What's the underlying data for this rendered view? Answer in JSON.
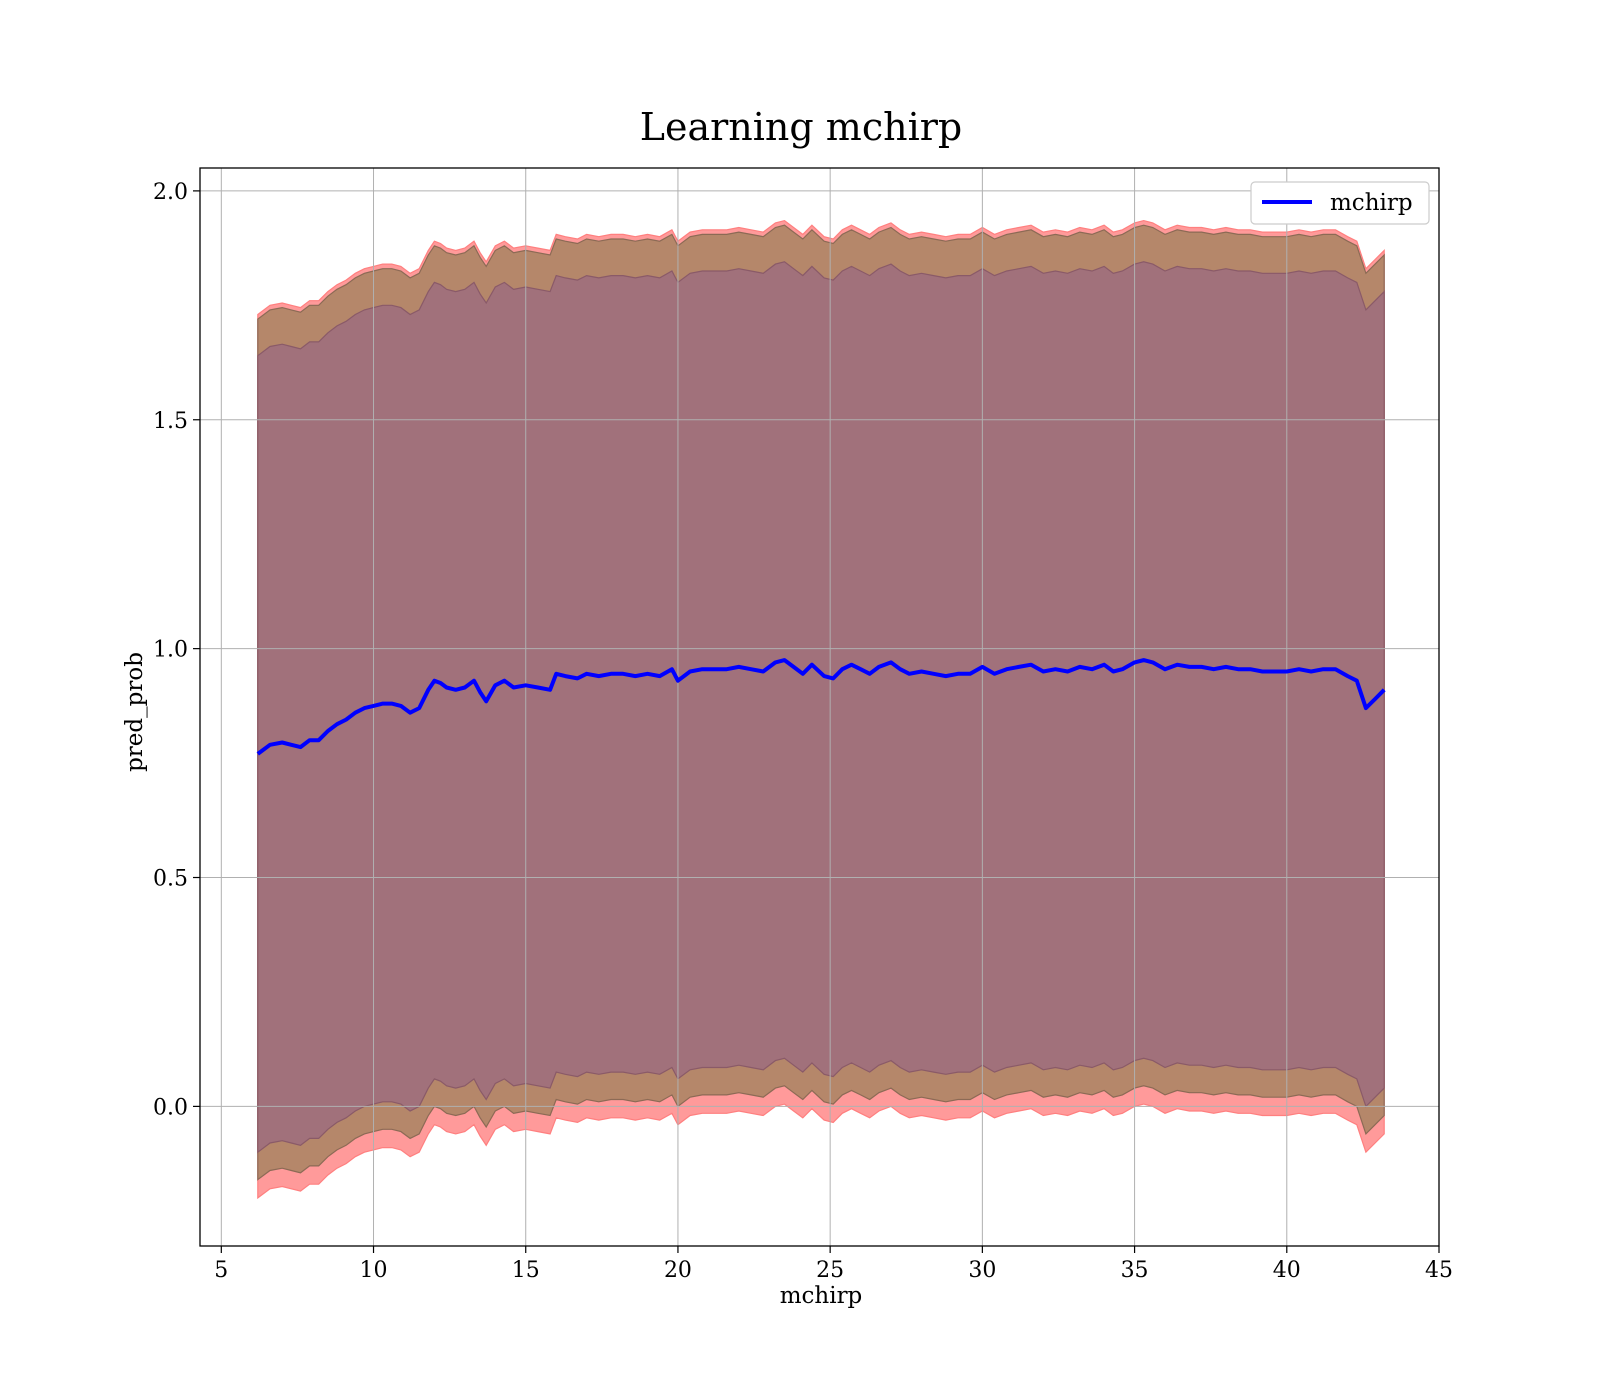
{
  "chart_data": {
    "type": "line",
    "title": "Learning mchirp",
    "xlabel": "mchirp",
    "ylabel": "pred_prob",
    "xlim": [
      4.3,
      45
    ],
    "ylim": [
      -0.305,
      2.05
    ],
    "xticks": [
      5,
      10,
      15,
      20,
      25,
      30,
      35,
      40,
      45
    ],
    "yticks": [
      0.0,
      0.5,
      1.0,
      1.5,
      2.0
    ],
    "xtick_labels": [
      "5",
      "10",
      "15",
      "20",
      "25",
      "30",
      "35",
      "40",
      "45"
    ],
    "ytick_labels": [
      "0.0",
      "0.5",
      "1.0",
      "1.5",
      "2.0"
    ],
    "grid": true,
    "legend": {
      "position": "upper-right",
      "entries": [
        "mchirp"
      ]
    },
    "colors": {
      "line": "#0000ff",
      "band_outer": "#ff9a9a",
      "band_middle": "#b5876a",
      "band_inner": "#a1717b",
      "grid": "#b0b0b0"
    },
    "series": [
      {
        "name": "mchirp",
        "x": [
          6.2,
          6.6,
          7.0,
          7.3,
          7.6,
          7.9,
          8.2,
          8.5,
          8.8,
          9.1,
          9.4,
          9.7,
          10.0,
          10.3,
          10.6,
          10.9,
          11.2,
          11.5,
          11.8,
          12.0,
          12.2,
          12.4,
          12.7,
          13.0,
          13.3,
          13.5,
          13.7,
          14.0,
          14.3,
          14.6,
          15.0,
          15.4,
          15.8,
          16.0,
          16.3,
          16.7,
          17.0,
          17.4,
          17.8,
          18.2,
          18.6,
          19.0,
          19.4,
          19.8,
          20.0,
          20.4,
          20.8,
          21.2,
          21.6,
          22.0,
          22.4,
          22.8,
          23.2,
          23.5,
          23.8,
          24.1,
          24.4,
          24.8,
          25.1,
          25.4,
          25.7,
          26.0,
          26.3,
          26.6,
          27.0,
          27.3,
          27.6,
          28.0,
          28.4,
          28.8,
          29.2,
          29.6,
          30.0,
          30.4,
          30.8,
          31.2,
          31.6,
          32.0,
          32.4,
          32.8,
          33.2,
          33.6,
          34.0,
          34.3,
          34.6,
          35.0,
          35.3,
          35.6,
          36.0,
          36.4,
          36.8,
          37.2,
          37.6,
          38.0,
          38.4,
          38.8,
          39.2,
          39.6,
          40.0,
          40.4,
          40.8,
          41.2,
          41.6,
          42.0,
          42.3,
          42.6,
          42.9,
          43.2
        ],
        "mean": [
          0.77,
          0.79,
          0.795,
          0.79,
          0.785,
          0.8,
          0.8,
          0.82,
          0.835,
          0.845,
          0.86,
          0.87,
          0.875,
          0.88,
          0.88,
          0.875,
          0.86,
          0.87,
          0.91,
          0.93,
          0.925,
          0.915,
          0.91,
          0.915,
          0.93,
          0.905,
          0.885,
          0.92,
          0.93,
          0.915,
          0.92,
          0.915,
          0.91,
          0.945,
          0.94,
          0.935,
          0.945,
          0.94,
          0.945,
          0.945,
          0.94,
          0.945,
          0.94,
          0.955,
          0.93,
          0.95,
          0.955,
          0.955,
          0.955,
          0.96,
          0.955,
          0.95,
          0.97,
          0.975,
          0.96,
          0.945,
          0.965,
          0.94,
          0.935,
          0.955,
          0.965,
          0.955,
          0.945,
          0.96,
          0.97,
          0.955,
          0.945,
          0.95,
          0.945,
          0.94,
          0.945,
          0.945,
          0.96,
          0.945,
          0.955,
          0.96,
          0.965,
          0.95,
          0.955,
          0.95,
          0.96,
          0.955,
          0.965,
          0.95,
          0.955,
          0.97,
          0.975,
          0.97,
          0.955,
          0.965,
          0.96,
          0.96,
          0.955,
          0.96,
          0.955,
          0.955,
          0.95,
          0.95,
          0.95,
          0.955,
          0.95,
          0.955,
          0.955,
          0.94,
          0.93,
          0.87,
          0.89,
          0.91
        ]
      }
    ],
    "bands": [
      {
        "name": "outer",
        "upper_offset": 0.96,
        "lower_offset": -0.97
      },
      {
        "name": "middle",
        "upper_offset": 0.95,
        "lower_offset": -0.93
      },
      {
        "name": "inner",
        "upper_offset": 0.87,
        "lower_offset": -0.87
      }
    ]
  }
}
